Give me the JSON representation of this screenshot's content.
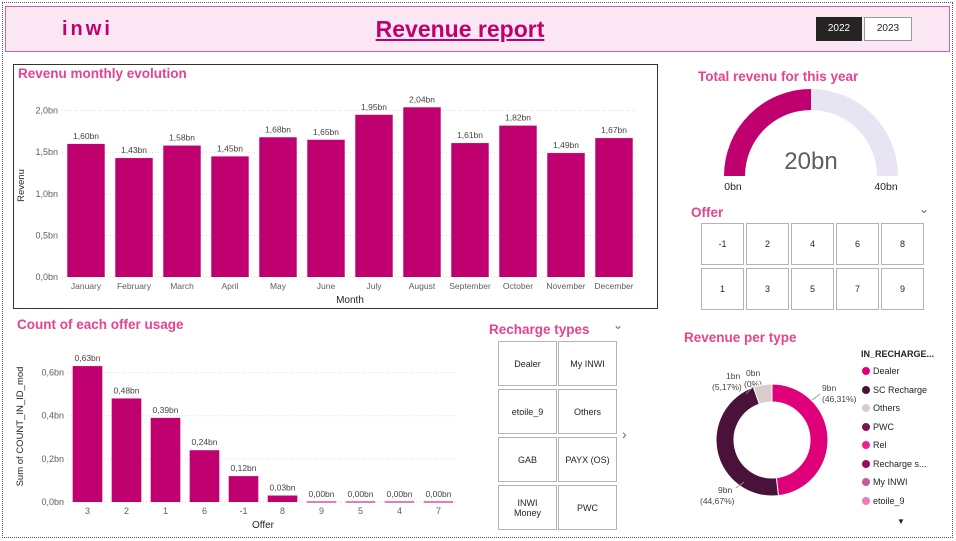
{
  "header": {
    "logo_text": "inwi",
    "title": "Revenue report",
    "years": [
      "2022",
      "2023"
    ],
    "selected_year": "2022"
  },
  "monthly_chart": {
    "title": "Revenu monthly evolution",
    "ylabel": "Revenu",
    "xlabel": "Month",
    "ytick_labels": [
      "0,0bn",
      "0,5bn",
      "1,0bn",
      "1,5bn",
      "2,0bn"
    ]
  },
  "gauge": {
    "title": "Total revenu for this year",
    "value_label": "20bn",
    "min_label": "0bn",
    "max_label": "40bn",
    "value": 20,
    "min": 0,
    "max": 40,
    "fill_color": "#c0006f",
    "track_color": "#e8e4f4"
  },
  "offer_slicer": {
    "title": "Offer",
    "row1": [
      "-1",
      "2",
      "4",
      "6",
      "8"
    ],
    "row2": [
      "1",
      "3",
      "5",
      "7",
      "9"
    ]
  },
  "offer_chart": {
    "title": "Count of each offer usage",
    "ylabel": "Sum of COUNT_IN_ID_mod",
    "xlabel": "Offer",
    "ytick_labels": [
      "0,0bn",
      "0,2bn",
      "0,4bn",
      "0,6bn"
    ]
  },
  "recharge_slicer": {
    "title": "Recharge types",
    "items": [
      "Dealer",
      "My INWI",
      "etoile_9",
      "Others",
      "GAB",
      "PAYX (OS)",
      "INWI Money",
      "PWC"
    ]
  },
  "donut": {
    "title": "Revenue per type",
    "legend_title": "IN_RECHARGE...",
    "legend": [
      {
        "label": "Dealer",
        "color": "#e0007a"
      },
      {
        "label": "SC Recharge",
        "color": "#4a1238"
      },
      {
        "label": "Others",
        "color": "#d8cccc"
      },
      {
        "label": "PWC",
        "color": "#7a1552"
      },
      {
        "label": "Rel",
        "color": "#ee1f8e"
      },
      {
        "label": "Recharge s...",
        "color": "#9c0b5a"
      },
      {
        "label": "My INWI",
        "color": "#c7589e"
      },
      {
        "label": "etoile_9",
        "color": "#f07ab8"
      }
    ],
    "labels": {
      "dealer": "9bn",
      "dealer_pct": "(46,31%)",
      "sc": "9bn",
      "sc_pct": "(44,67%)",
      "others": "1bn",
      "others_pct": "(5,17%)",
      "small": "0bn",
      "small_pct": "(0%)"
    }
  },
  "chart_data": [
    {
      "type": "bar",
      "title": "Revenu monthly evolution",
      "xlabel": "Month",
      "ylabel": "Revenu",
      "categories": [
        "January",
        "February",
        "March",
        "April",
        "May",
        "June",
        "July",
        "August",
        "September",
        "October",
        "November",
        "December"
      ],
      "values": [
        1.6,
        1.43,
        1.58,
        1.45,
        1.68,
        1.65,
        1.95,
        2.04,
        1.61,
        1.82,
        1.49,
        1.67
      ],
      "data_labels": [
        "1,60bn",
        "1,43bn",
        "1,58bn",
        "1,45bn",
        "1,68bn",
        "1,65bn",
        "1,95bn",
        "2,04bn",
        "1,61bn",
        "1,82bn",
        "1,49bn",
        "1,67bn"
      ],
      "ylim": [
        0,
        2.2
      ],
      "color": "#c0006f"
    },
    {
      "type": "bar",
      "title": "Count of each offer usage",
      "xlabel": "Offer",
      "ylabel": "Sum of COUNT_IN_ID_mod",
      "categories": [
        "3",
        "2",
        "1",
        "6",
        "-1",
        "8",
        "9",
        "5",
        "4",
        "7"
      ],
      "values": [
        0.63,
        0.48,
        0.39,
        0.24,
        0.12,
        0.03,
        0.0,
        0.0,
        0.0,
        0.0
      ],
      "data_labels": [
        "0,63bn",
        "0,48bn",
        "0,39bn",
        "0,24bn",
        "0,12bn",
        "0,03bn",
        "0,00bn",
        "0,00bn",
        "0,00bn",
        "0,00bn"
      ],
      "ylim": [
        0,
        0.7
      ],
      "color": "#c0006f"
    },
    {
      "type": "pie",
      "title": "Revenue per type",
      "categories": [
        "Dealer",
        "SC Recharge",
        "Others",
        "PWC"
      ],
      "values": [
        46.31,
        44.67,
        5.17,
        0.0
      ],
      "data_labels": [
        "9bn (46,31%)",
        "9bn (44,67%)",
        "1bn (5,17%)",
        "0bn (0%)"
      ]
    }
  ]
}
